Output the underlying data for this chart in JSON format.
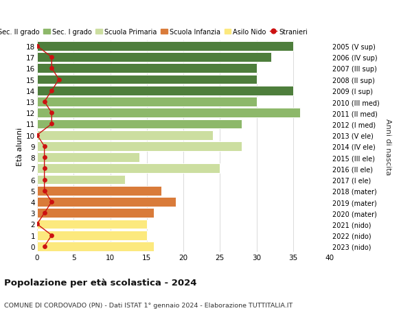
{
  "ages": [
    0,
    1,
    2,
    3,
    4,
    5,
    6,
    7,
    8,
    9,
    10,
    11,
    12,
    13,
    14,
    15,
    16,
    17,
    18
  ],
  "right_labels": [
    "2023 (nido)",
    "2022 (nido)",
    "2021 (nido)",
    "2020 (mater)",
    "2019 (mater)",
    "2018 (mater)",
    "2017 (I ele)",
    "2016 (II ele)",
    "2015 (III ele)",
    "2014 (IV ele)",
    "2013 (V ele)",
    "2012 (I med)",
    "2011 (II med)",
    "2010 (III med)",
    "2009 (I sup)",
    "2008 (II sup)",
    "2007 (III sup)",
    "2006 (IV sup)",
    "2005 (V sup)"
  ],
  "bar_values": [
    16,
    15,
    15,
    16,
    19,
    17,
    12,
    25,
    14,
    28,
    24,
    28,
    36,
    30,
    35,
    30,
    30,
    32,
    35
  ],
  "bar_colors": [
    "#fce97e",
    "#fce97e",
    "#fce97e",
    "#d97b3a",
    "#d97b3a",
    "#d97b3a",
    "#ccdea0",
    "#ccdea0",
    "#ccdea0",
    "#ccdea0",
    "#ccdea0",
    "#8db86a",
    "#8db86a",
    "#8db86a",
    "#4e7e3c",
    "#4e7e3c",
    "#4e7e3c",
    "#4e7e3c",
    "#4e7e3c"
  ],
  "stranieri_values": [
    1,
    2,
    0,
    1,
    2,
    1,
    1,
    1,
    1,
    1,
    0,
    2,
    2,
    1,
    2,
    3,
    2,
    2,
    0
  ],
  "legend_labels": [
    "Sec. II grado",
    "Sec. I grado",
    "Scuola Primaria",
    "Scuola Infanzia",
    "Asilo Nido",
    "Stranieri"
  ],
  "legend_colors": [
    "#4e7e3c",
    "#8db86a",
    "#ccdea0",
    "#d97b3a",
    "#fce97e",
    "#cc1111"
  ],
  "ylabel_label": "Età alunni",
  "right_ylabel": "Anni di nascita",
  "title": "Popolazione per età scolastica - 2024",
  "subtitle": "COMUNE DI CORDOVADO (PN) - Dati ISTAT 1° gennaio 2024 - Elaborazione TUTTITALIA.IT",
  "xlim": [
    0,
    40
  ],
  "background_color": "#ffffff",
  "grid_color": "#cccccc"
}
